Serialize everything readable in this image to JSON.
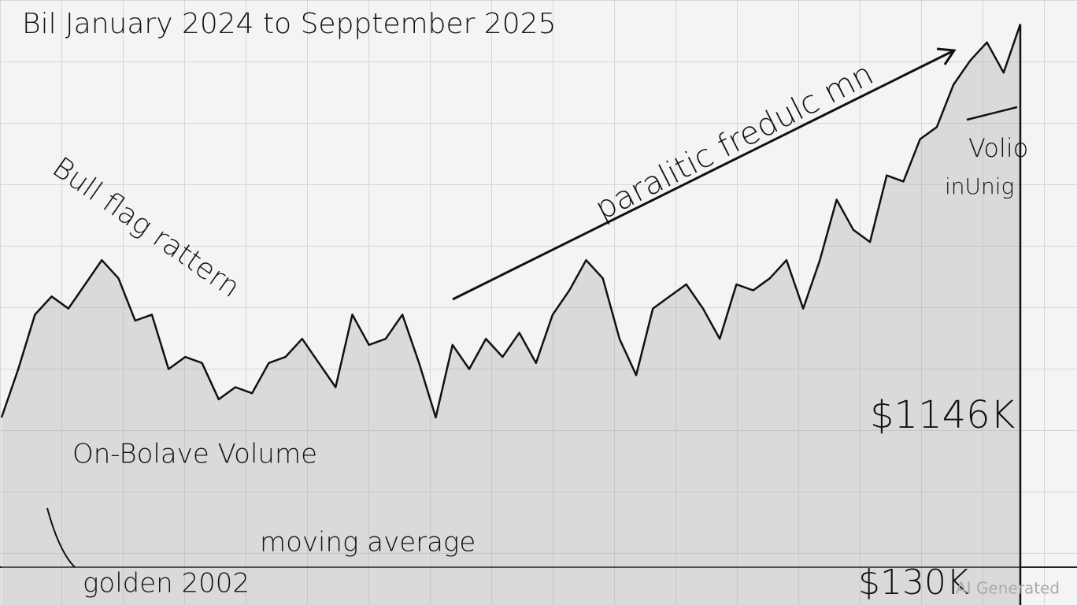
{
  "chart_data": {
    "type": "area",
    "title": "Bil January 2024 to Sepptember 2025",
    "values": [
      31,
      39,
      48,
      51,
      49,
      53,
      57,
      54,
      47,
      48,
      39,
      41,
      40,
      34,
      36,
      35,
      40,
      41,
      44,
      40,
      36,
      48,
      43,
      44,
      48,
      40,
      31,
      43,
      39,
      44,
      41,
      45,
      40,
      48,
      52,
      57,
      54,
      44,
      38,
      49,
      51,
      53,
      49,
      44,
      53,
      52,
      54,
      57,
      49,
      57,
      67,
      62,
      60,
      71,
      70,
      77,
      79,
      86,
      90,
      93,
      88,
      96
    ],
    "color": "#111111",
    "ylim": [
      0,
      100
    ],
    "annotations": [
      "Bull flag rattern",
      "paralitic fredulc mn",
      "Volio",
      "inUnig",
      "$1146K",
      "On-Bolave Volume",
      "moving average",
      "golden 2002",
      "$130K"
    ],
    "watermark": "AI Generated"
  }
}
